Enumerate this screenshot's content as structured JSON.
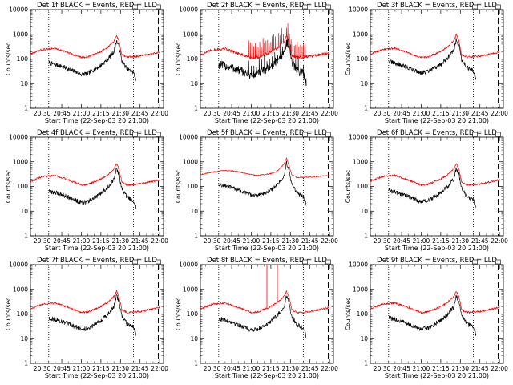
{
  "chart_data": [
    {
      "type": "line",
      "title": "Det 1f BLACK = Events, RED = LLD",
      "xlabel": "Start Time (22-Sep-03 20:21:00)",
      "ylabel": "Counts/sec",
      "yscale": "log",
      "ylim": [
        1,
        10000
      ],
      "xlim": [
        "20:21",
        "22:03"
      ],
      "x_ticks": [
        "20:30",
        "20:45",
        "21:00",
        "21:15",
        "21:30",
        "21:45",
        "22:00"
      ],
      "y_ticks": [
        "1",
        "10",
        "100",
        "1000",
        "10000"
      ],
      "markers": [
        "20:35",
        "21:40",
        "21:59"
      ],
      "series": [
        {
          "name": "Events",
          "color": "#000000",
          "x": [
            "20:35",
            "20:45",
            "21:00",
            "21:05",
            "21:15",
            "21:20",
            "21:25",
            "21:27",
            "21:29",
            "21:31",
            "21:35",
            "21:40",
            "21:42"
          ],
          "y": [
            70,
            50,
            24,
            26,
            55,
            95,
            200,
            550,
            300,
            85,
            40,
            28,
            14
          ],
          "noise": 0.09
        },
        {
          "name": "LLD",
          "color": "#ff0000",
          "x": [
            "20:21",
            "20:30",
            "20:40",
            "20:50",
            "21:00",
            "21:05",
            "21:15",
            "21:20",
            "21:25",
            "21:27",
            "21:29",
            "21:31",
            "21:35",
            "21:45",
            "22:00"
          ],
          "y": [
            160,
            240,
            270,
            180,
            115,
            120,
            200,
            290,
            520,
            900,
            500,
            150,
            120,
            130,
            190
          ],
          "noise": 0.04
        }
      ]
    },
    {
      "type": "line",
      "title": "Det 2f BLACK = Events, RED = LLD",
      "xlabel": "Start Time (22-Sep-03 20:21:00)",
      "ylabel": "Counts/sec",
      "yscale": "log",
      "ylim": [
        1,
        10000
      ],
      "xlim": [
        "20:21",
        "22:03"
      ],
      "x_ticks": [
        "20:30",
        "20:45",
        "21:00",
        "21:15",
        "21:30",
        "21:45",
        "22:00"
      ],
      "y_ticks": [
        "1",
        "10",
        "100",
        "1000",
        "10000"
      ],
      "markers": [
        "20:35",
        "21:40",
        "21:59"
      ],
      "series": [
        {
          "name": "Events",
          "color": "#000000",
          "x": [
            "20:35",
            "20:45",
            "21:00",
            "21:05",
            "21:15",
            "21:20",
            "21:25",
            "21:27",
            "21:29",
            "21:31",
            "21:35",
            "21:40",
            "21:42"
          ],
          "y": [
            60,
            45,
            22,
            25,
            50,
            90,
            180,
            500,
            280,
            80,
            35,
            25,
            12
          ],
          "noise": 0.18,
          "spikes": {
            "from": "20:58",
            "to": "21:42",
            "every": 2,
            "factor": 2.5
          }
        },
        {
          "name": "LLD",
          "color": "#ff0000",
          "x": [
            "20:21",
            "20:30",
            "20:40",
            "20:50",
            "21:00",
            "21:05",
            "21:15",
            "21:20",
            "21:25",
            "21:27",
            "21:29",
            "21:31",
            "21:35",
            "21:45",
            "22:00"
          ],
          "y": [
            150,
            230,
            260,
            170,
            110,
            115,
            190,
            280,
            500,
            850,
            480,
            140,
            115,
            125,
            180
          ],
          "noise": 0.06,
          "spikes": {
            "from": "20:58",
            "to": "21:42",
            "every": 1.2,
            "factor": 3.2
          }
        }
      ]
    },
    {
      "type": "line",
      "title": "Det 3f BLACK = Events, RED = LLD",
      "xlabel": "Start Time (22-Sep-03 20:21:00)",
      "ylabel": "Counts/sec",
      "yscale": "log",
      "ylim": [
        1,
        10000
      ],
      "xlim": [
        "20:21",
        "22:03"
      ],
      "x_ticks": [
        "20:30",
        "20:45",
        "21:00",
        "21:15",
        "21:30",
        "21:45",
        "22:00"
      ],
      "y_ticks": [
        "1",
        "10",
        "100",
        "1000",
        "10000"
      ],
      "markers": [
        "20:35",
        "21:40",
        "21:59"
      ],
      "series": [
        {
          "name": "Events",
          "color": "#000000",
          "x": [
            "20:35",
            "20:45",
            "21:00",
            "21:05",
            "21:15",
            "21:20",
            "21:25",
            "21:27",
            "21:29",
            "21:31",
            "21:35",
            "21:40",
            "21:42"
          ],
          "y": [
            80,
            55,
            28,
            30,
            60,
            110,
            230,
            650,
            350,
            95,
            45,
            32,
            16
          ],
          "noise": 0.09
        },
        {
          "name": "LLD",
          "color": "#ff0000",
          "x": [
            "20:21",
            "20:30",
            "20:40",
            "20:50",
            "21:00",
            "21:05",
            "21:15",
            "21:20",
            "21:25",
            "21:27",
            "21:29",
            "21:31",
            "21:35",
            "21:45",
            "22:00"
          ],
          "y": [
            160,
            240,
            270,
            180,
            115,
            120,
            210,
            300,
            560,
            1000,
            520,
            150,
            120,
            130,
            190
          ],
          "noise": 0.04
        }
      ]
    },
    {
      "type": "line",
      "title": "Det 4f BLACK = Events, RED = LLD",
      "xlabel": "Start Time (22-Sep-03 20:21:00)",
      "ylabel": "Counts/sec",
      "yscale": "log",
      "ylim": [
        1,
        10000
      ],
      "xlim": [
        "20:21",
        "22:03"
      ],
      "x_ticks": [
        "20:30",
        "20:45",
        "21:00",
        "21:15",
        "21:30",
        "21:45",
        "22:00"
      ],
      "y_ticks": [
        "1",
        "10",
        "100",
        "1000",
        "10000"
      ],
      "markers": [
        "20:35",
        "21:40",
        "21:59"
      ],
      "series": [
        {
          "name": "Events",
          "color": "#000000",
          "x": [
            "20:35",
            "20:45",
            "21:00",
            "21:05",
            "21:15",
            "21:20",
            "21:25",
            "21:27",
            "21:29",
            "21:31",
            "21:35",
            "21:40",
            "21:42"
          ],
          "y": [
            65,
            48,
            22,
            24,
            50,
            90,
            190,
            520,
            290,
            80,
            38,
            26,
            13
          ],
          "noise": 0.09
        },
        {
          "name": "LLD",
          "color": "#ff0000",
          "x": [
            "20:21",
            "20:30",
            "20:40",
            "20:50",
            "21:00",
            "21:05",
            "21:15",
            "21:20",
            "21:25",
            "21:27",
            "21:29",
            "21:31",
            "21:35",
            "21:45",
            "22:00"
          ],
          "y": [
            160,
            250,
            280,
            185,
            115,
            120,
            200,
            290,
            520,
            850,
            480,
            150,
            115,
            125,
            185
          ],
          "noise": 0.04
        }
      ]
    },
    {
      "type": "line",
      "title": "Det 5f BLACK = Events, RED = LLD",
      "xlabel": "Start Time (22-Sep-03 20:21:00)",
      "ylabel": "Counts/sec",
      "yscale": "log",
      "ylim": [
        1,
        10000
      ],
      "xlim": [
        "20:21",
        "22:03"
      ],
      "x_ticks": [
        "20:30",
        "20:45",
        "21:00",
        "21:15",
        "21:30",
        "21:45",
        "22:00"
      ],
      "y_ticks": [
        "1",
        "10",
        "100",
        "1000",
        "10000"
      ],
      "markers": [
        "20:35",
        "21:40",
        "21:59"
      ],
      "series": [
        {
          "name": "Events",
          "color": "#000000",
          "x": [
            "20:35",
            "20:45",
            "21:00",
            "21:05",
            "21:15",
            "21:20",
            "21:25",
            "21:27",
            "21:29",
            "21:31",
            "21:35",
            "21:40",
            "21:42"
          ],
          "y": [
            120,
            90,
            45,
            42,
            70,
            120,
            240,
            900,
            420,
            120,
            55,
            38,
            20
          ],
          "noise": 0.08
        },
        {
          "name": "LLD",
          "color": "#ff0000",
          "x": [
            "20:21",
            "20:30",
            "20:40",
            "20:50",
            "21:00",
            "21:05",
            "21:15",
            "21:20",
            "21:25",
            "21:27",
            "21:29",
            "21:31",
            "21:35",
            "21:45",
            "22:00"
          ],
          "y": [
            300,
            380,
            450,
            400,
            300,
            280,
            330,
            420,
            800,
            1400,
            700,
            300,
            230,
            240,
            280
          ],
          "noise": 0.02
        }
      ]
    },
    {
      "type": "line",
      "title": "Det 6f BLACK = Events, RED = LLD",
      "xlabel": "Start Time (22-Sep-03 20:21:00)",
      "ylabel": "Counts/sec",
      "yscale": "log",
      "ylim": [
        1,
        10000
      ],
      "xlim": [
        "20:21",
        "22:03"
      ],
      "x_ticks": [
        "20:30",
        "20:45",
        "21:00",
        "21:15",
        "21:30",
        "21:45",
        "22:00"
      ],
      "y_ticks": [
        "1",
        "10",
        "100",
        "1000",
        "10000"
      ],
      "markers": [
        "20:35",
        "21:40",
        "21:59"
      ],
      "series": [
        {
          "name": "Events",
          "color": "#000000",
          "x": [
            "20:35",
            "20:45",
            "21:00",
            "21:05",
            "21:15",
            "21:20",
            "21:25",
            "21:27",
            "21:29",
            "21:31",
            "21:35",
            "21:40",
            "21:42"
          ],
          "y": [
            70,
            50,
            24,
            26,
            55,
            95,
            200,
            550,
            300,
            85,
            40,
            28,
            13
          ],
          "noise": 0.09
        },
        {
          "name": "LLD",
          "color": "#ff0000",
          "x": [
            "20:21",
            "20:30",
            "20:40",
            "20:50",
            "21:00",
            "21:05",
            "21:15",
            "21:20",
            "21:25",
            "21:27",
            "21:29",
            "21:31",
            "21:35",
            "21:45",
            "22:00"
          ],
          "y": [
            160,
            250,
            280,
            185,
            115,
            120,
            200,
            290,
            520,
            850,
            480,
            150,
            115,
            125,
            185
          ],
          "noise": 0.04
        }
      ]
    },
    {
      "type": "line",
      "title": "Det 7f BLACK = Events, RED = LLD",
      "xlabel": "Start Time (22-Sep-03 20:21:00)",
      "ylabel": "Counts/sec",
      "yscale": "log",
      "ylim": [
        1,
        10000
      ],
      "xlim": [
        "20:21",
        "22:03"
      ],
      "x_ticks": [
        "20:30",
        "20:45",
        "21:00",
        "21:15",
        "21:30",
        "21:45",
        "22:00"
      ],
      "y_ticks": [
        "1",
        "10",
        "100",
        "1000",
        "10000"
      ],
      "markers": [
        "20:35",
        "21:40",
        "21:59"
      ],
      "series": [
        {
          "name": "Events",
          "color": "#000000",
          "x": [
            "20:35",
            "20:45",
            "21:00",
            "21:05",
            "21:15",
            "21:20",
            "21:25",
            "21:27",
            "21:29",
            "21:31",
            "21:35",
            "21:40",
            "21:42"
          ],
          "y": [
            70,
            50,
            24,
            26,
            55,
            95,
            200,
            550,
            300,
            85,
            40,
            28,
            14
          ],
          "noise": 0.09
        },
        {
          "name": "LLD",
          "color": "#ff0000",
          "x": [
            "20:21",
            "20:30",
            "20:40",
            "20:50",
            "21:00",
            "21:05",
            "21:15",
            "21:20",
            "21:25",
            "21:27",
            "21:29",
            "21:31",
            "21:35",
            "21:45",
            "22:00"
          ],
          "y": [
            160,
            250,
            280,
            185,
            115,
            120,
            200,
            290,
            520,
            850,
            480,
            150,
            115,
            125,
            185
          ],
          "noise": 0.04
        }
      ]
    },
    {
      "type": "line",
      "title": "Det 8f BLACK = Events, RED = LLD",
      "xlabel": "Start Time (22-Sep-03 20:21:00)",
      "ylabel": "Counts/sec",
      "yscale": "log",
      "ylim": [
        1,
        10000
      ],
      "xlim": [
        "20:21",
        "22:03"
      ],
      "x_ticks": [
        "20:30",
        "20:45",
        "21:00",
        "21:15",
        "21:30",
        "21:45",
        "22:00"
      ],
      "y_ticks": [
        "1",
        "10",
        "100",
        "1000",
        "10000"
      ],
      "markers": [
        "20:35",
        "21:40",
        "21:59"
      ],
      "series": [
        {
          "name": "Events",
          "color": "#000000",
          "x": [
            "20:35",
            "20:45",
            "21:00",
            "21:05",
            "21:15",
            "21:20",
            "21:25",
            "21:27",
            "21:29",
            "21:31",
            "21:35",
            "21:40",
            "21:42"
          ],
          "y": [
            65,
            48,
            22,
            24,
            50,
            90,
            190,
            520,
            290,
            80,
            38,
            26,
            13
          ],
          "noise": 0.09
        },
        {
          "name": "LLD",
          "color": "#ff0000",
          "x": [
            "20:21",
            "20:30",
            "20:40",
            "20:50",
            "21:00",
            "21:05",
            "21:15",
            "21:20",
            "21:25",
            "21:27",
            "21:29",
            "21:31",
            "21:35",
            "21:45",
            "22:00"
          ],
          "y": [
            160,
            250,
            280,
            185,
            115,
            120,
            200,
            290,
            520,
            850,
            480,
            150,
            115,
            125,
            185
          ],
          "noise": 0.04,
          "spike_lines": [
            {
              "x": "21:12",
              "y": 10000
            },
            {
              "x": "21:20",
              "y": 10000
            }
          ]
        }
      ]
    },
    {
      "type": "line",
      "title": "Det 9f BLACK = Events, RED = LLD",
      "xlabel": "Start Time (22-Sep-03 20:21:00)",
      "ylabel": "Counts/sec",
      "yscale": "log",
      "ylim": [
        1,
        10000
      ],
      "xlim": [
        "20:21",
        "22:03"
      ],
      "x_ticks": [
        "20:30",
        "20:45",
        "21:00",
        "21:15",
        "21:30",
        "21:45",
        "22:00"
      ],
      "y_ticks": [
        "1",
        "10",
        "100",
        "1000",
        "10000"
      ],
      "markers": [
        "20:35",
        "21:40",
        "21:59"
      ],
      "series": [
        {
          "name": "Events",
          "color": "#000000",
          "x": [
            "20:35",
            "20:45",
            "21:00",
            "21:05",
            "21:15",
            "21:20",
            "21:25",
            "21:27",
            "21:29",
            "21:31",
            "21:35",
            "21:40",
            "21:42"
          ],
          "y": [
            70,
            50,
            24,
            26,
            55,
            95,
            200,
            550,
            300,
            85,
            40,
            28,
            14
          ],
          "noise": 0.09
        },
        {
          "name": "LLD",
          "color": "#ff0000",
          "x": [
            "20:21",
            "20:30",
            "20:40",
            "20:50",
            "21:00",
            "21:05",
            "21:15",
            "21:20",
            "21:25",
            "21:27",
            "21:29",
            "21:31",
            "21:35",
            "21:45",
            "22:00"
          ],
          "y": [
            160,
            250,
            280,
            185,
            115,
            120,
            200,
            290,
            520,
            850,
            480,
            150,
            115,
            125,
            185
          ],
          "noise": 0.04
        }
      ]
    }
  ]
}
